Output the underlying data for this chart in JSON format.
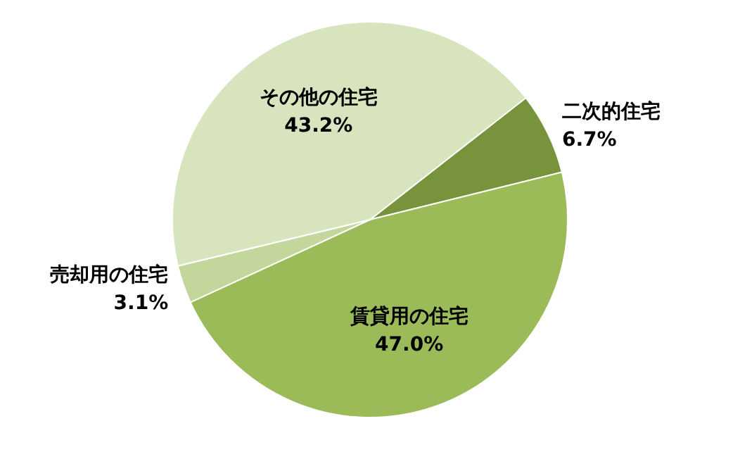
{
  "chart_data": {
    "type": "pie",
    "categories": [
      "二次的住宅",
      "賃貸用の住宅",
      "売却用の住宅",
      "その他の住宅"
    ],
    "values": [
      6.7,
      47.0,
      3.1,
      43.2
    ],
    "value_labels": [
      "6.7%",
      "47.0%",
      "3.1%",
      "43.2%"
    ],
    "colors": [
      "#77933c",
      "#9bbb59",
      "#c3d69b",
      "#d7e4bd"
    ]
  }
}
